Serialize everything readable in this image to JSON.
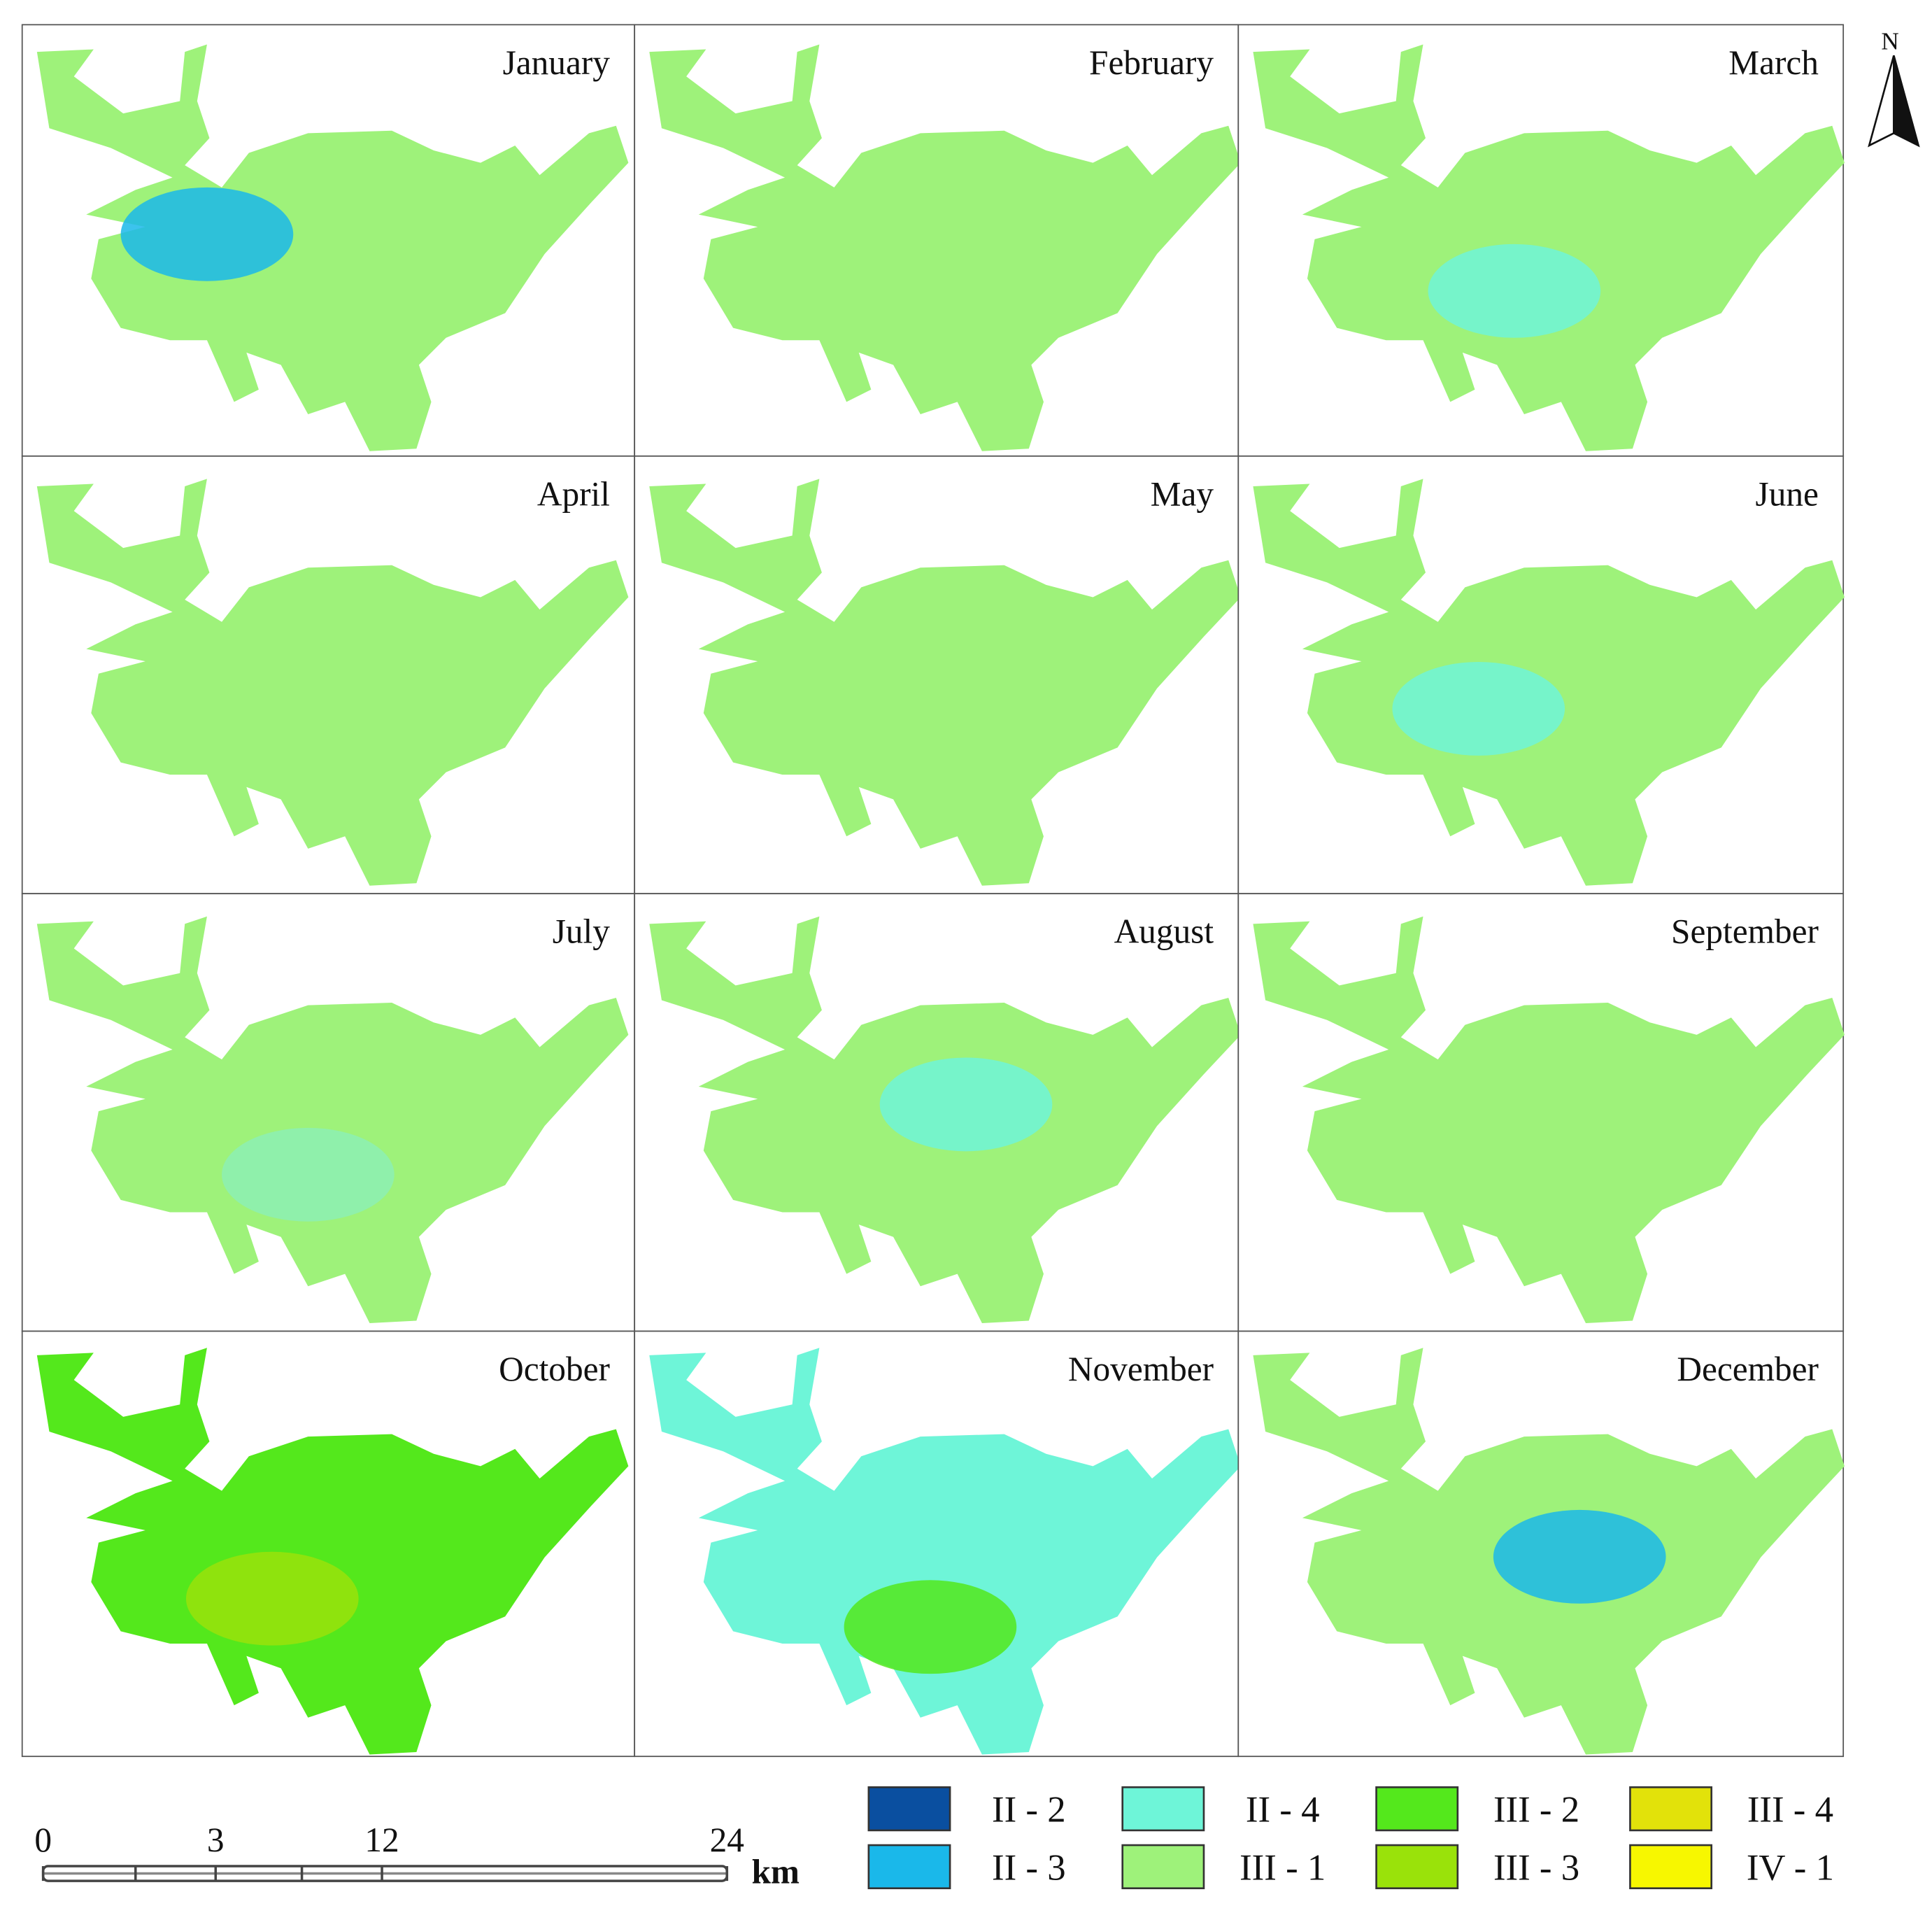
{
  "north_label": "N",
  "panels": [
    {
      "month": "January",
      "color": "#9ef27a",
      "patch_color": "#1ab8ea"
    },
    {
      "month": "February",
      "color": "#9ef27a"
    },
    {
      "month": "March",
      "color": "#9ef27a",
      "patch_color": "#6ef5d8"
    },
    {
      "month": "April",
      "color": "#9ef27a"
    },
    {
      "month": "May",
      "color": "#9ef27a"
    },
    {
      "month": "June",
      "color": "#9ef27a",
      "patch_color": "#6ef5d8"
    },
    {
      "month": "July",
      "color": "#9ef27a",
      "patch_color": "#8cf0b4"
    },
    {
      "month": "August",
      "color": "#9ef27a",
      "patch_color": "#6ef5d8"
    },
    {
      "month": "September",
      "color": "#9ef27a"
    },
    {
      "month": "October",
      "color": "#54e81c",
      "patch_color": "#9ae20a"
    },
    {
      "month": "November",
      "color": "#6ef5d8",
      "patch_color": "#54e81c"
    },
    {
      "month": "December",
      "color": "#9ef27a",
      "patch_color": "#1ab8ea"
    }
  ],
  "legend": [
    {
      "label": "II - 2",
      "color": "#0a4fa0"
    },
    {
      "label": "II - 3",
      "color": "#1ab8ea"
    },
    {
      "label": "II - 4",
      "color": "#6ef5d8"
    },
    {
      "label": "III - 1",
      "color": "#9ef27a"
    },
    {
      "label": "III - 2",
      "color": "#54e81c"
    },
    {
      "label": "III - 3",
      "color": "#9ae20a"
    },
    {
      "label": "III - 4",
      "color": "#e2e20a"
    },
    {
      "label": "IV - 1",
      "color": "#f7f700"
    }
  ],
  "scale_bar": {
    "ticks": [
      0,
      3,
      12,
      24
    ],
    "unit": "km"
  }
}
